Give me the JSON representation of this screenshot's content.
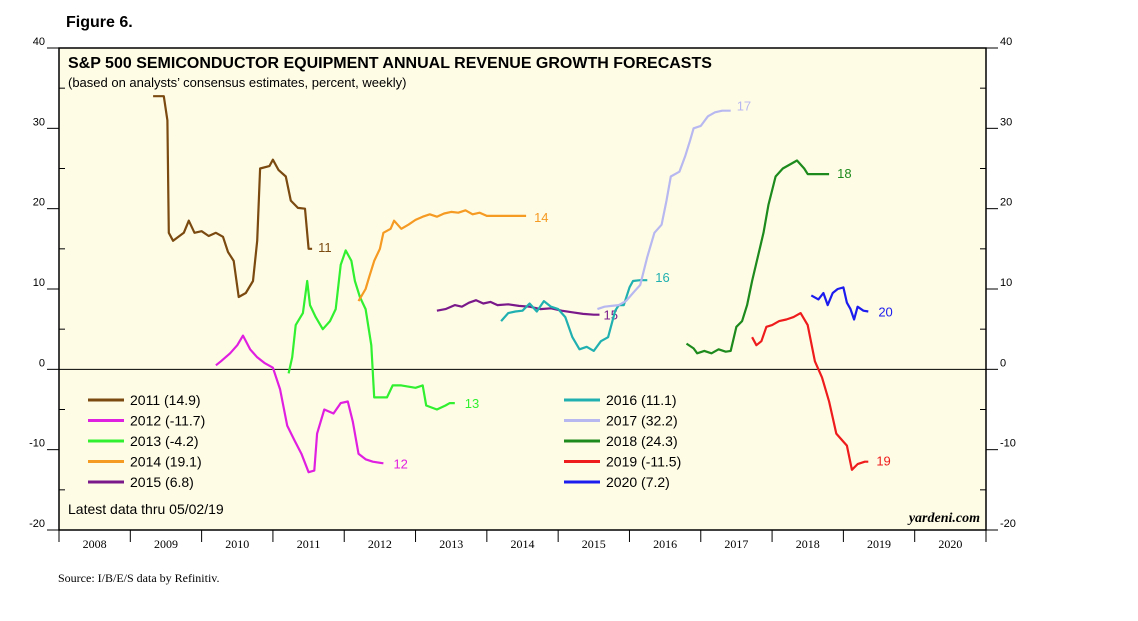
{
  "figure_label": "Figure 6.",
  "source": "Source: I/B/E/S data by Refinitiv.",
  "chart_data": {
    "type": "line",
    "title": "S&P 500 SEMICONDUCTOR EQUIPMENT ANNUAL REVENUE GROWTH FORECASTS",
    "subtitle": "(based on analysts’ consensus estimates, percent, weekly)",
    "ylim": [
      -20,
      40
    ],
    "yticks": [
      -20,
      -10,
      0,
      10,
      20,
      30,
      40
    ],
    "xlim": [
      2008,
      2021
    ],
    "xtick_labels": [
      "2008",
      "2009",
      "2010",
      "2011",
      "2012",
      "2013",
      "2014",
      "2015",
      "2016",
      "2017",
      "2018",
      "2019",
      "2020"
    ],
    "plot_background": "#fffce6",
    "latest_note": "Latest data thru 05/02/19",
    "watermark": "yardeni.com",
    "series": [
      {
        "name": "2011",
        "end_label": "11",
        "legend": "2011 (14.9)",
        "color": "#7a4a10",
        "points": [
          [
            2009.32,
            34
          ],
          [
            2009.47,
            34
          ],
          [
            2009.52,
            31
          ],
          [
            2009.54,
            17
          ],
          [
            2009.6,
            16
          ],
          [
            2009.75,
            17
          ],
          [
            2009.82,
            18.5
          ],
          [
            2009.9,
            17
          ],
          [
            2010.0,
            17.2
          ],
          [
            2010.1,
            16.6
          ],
          [
            2010.2,
            17
          ],
          [
            2010.3,
            16.5
          ],
          [
            2010.37,
            14.6
          ],
          [
            2010.45,
            13.5
          ],
          [
            2010.52,
            9
          ],
          [
            2010.62,
            9.5
          ],
          [
            2010.72,
            11
          ],
          [
            2010.78,
            16
          ],
          [
            2010.82,
            25
          ],
          [
            2010.95,
            25.3
          ],
          [
            2011.0,
            26.1
          ],
          [
            2011.08,
            24.8
          ],
          [
            2011.18,
            24
          ],
          [
            2011.25,
            21
          ],
          [
            2011.35,
            20.1
          ],
          [
            2011.45,
            20
          ],
          [
            2011.5,
            15
          ],
          [
            2011.55,
            15
          ]
        ]
      },
      {
        "name": "2012",
        "end_label": "12",
        "legend": "2012 (-11.7)",
        "color": "#e020e0",
        "points": [
          [
            2010.2,
            0.5
          ],
          [
            2010.27,
            1
          ],
          [
            2010.4,
            2
          ],
          [
            2010.5,
            3
          ],
          [
            2010.58,
            4.2
          ],
          [
            2010.68,
            2.5
          ],
          [
            2010.78,
            1.5
          ],
          [
            2010.88,
            0.8
          ],
          [
            2011.0,
            0.2
          ],
          [
            2011.1,
            -2.5
          ],
          [
            2011.2,
            -7
          ],
          [
            2011.3,
            -8.8
          ],
          [
            2011.4,
            -10.5
          ],
          [
            2011.5,
            -12.8
          ],
          [
            2011.58,
            -12.6
          ],
          [
            2011.62,
            -8
          ],
          [
            2011.72,
            -5
          ],
          [
            2011.85,
            -5.5
          ],
          [
            2011.95,
            -4.2
          ],
          [
            2012.05,
            -4
          ],
          [
            2012.12,
            -6.5
          ],
          [
            2012.2,
            -10.5
          ],
          [
            2012.3,
            -11.2
          ],
          [
            2012.4,
            -11.5
          ],
          [
            2012.55,
            -11.7
          ]
        ]
      },
      {
        "name": "2013",
        "end_label": "13",
        "legend": "2013 (-4.2)",
        "color": "#30f030",
        "points": [
          [
            2011.22,
            -0.5
          ],
          [
            2011.27,
            1.5
          ],
          [
            2011.32,
            5.5
          ],
          [
            2011.42,
            7
          ],
          [
            2011.48,
            11
          ],
          [
            2011.52,
            8
          ],
          [
            2011.6,
            6.5
          ],
          [
            2011.7,
            5
          ],
          [
            2011.8,
            6
          ],
          [
            2011.88,
            7.5
          ],
          [
            2011.95,
            13
          ],
          [
            2012.02,
            14.8
          ],
          [
            2012.1,
            13.5
          ],
          [
            2012.15,
            11
          ],
          [
            2012.22,
            9
          ],
          [
            2012.3,
            7.5
          ],
          [
            2012.38,
            3
          ],
          [
            2012.42,
            -3.5
          ],
          [
            2012.6,
            -3.5
          ],
          [
            2012.68,
            -2
          ],
          [
            2012.8,
            -2
          ],
          [
            2013.0,
            -2.3
          ],
          [
            2013.1,
            -2
          ],
          [
            2013.15,
            -4.5
          ],
          [
            2013.3,
            -5
          ],
          [
            2013.42,
            -4.5
          ],
          [
            2013.48,
            -4.2
          ],
          [
            2013.55,
            -4.2
          ]
        ]
      },
      {
        "name": "2014",
        "end_label": "14",
        "legend": "2014 (19.1)",
        "color": "#f59a22",
        "points": [
          [
            2012.2,
            8.5
          ],
          [
            2012.3,
            10
          ],
          [
            2012.35,
            11.5
          ],
          [
            2012.42,
            13.5
          ],
          [
            2012.5,
            15
          ],
          [
            2012.55,
            17
          ],
          [
            2012.65,
            17.5
          ],
          [
            2012.7,
            18.5
          ],
          [
            2012.8,
            17.5
          ],
          [
            2012.9,
            18
          ],
          [
            2013.0,
            18.6
          ],
          [
            2013.1,
            19
          ],
          [
            2013.2,
            19.3
          ],
          [
            2013.3,
            19
          ],
          [
            2013.4,
            19.4
          ],
          [
            2013.5,
            19.6
          ],
          [
            2013.6,
            19.5
          ],
          [
            2013.7,
            19.8
          ],
          [
            2013.8,
            19.3
          ],
          [
            2013.9,
            19.5
          ],
          [
            2014.0,
            19.1
          ],
          [
            2014.2,
            19.1
          ],
          [
            2014.55,
            19.1
          ]
        ]
      },
      {
        "name": "2015",
        "end_label": "15",
        "legend": "2015 (6.8)",
        "color": "#7a1a8a",
        "points": [
          [
            2013.3,
            7.3
          ],
          [
            2013.42,
            7.5
          ],
          [
            2013.55,
            8
          ],
          [
            2013.65,
            7.8
          ],
          [
            2013.75,
            8.3
          ],
          [
            2013.85,
            8.6
          ],
          [
            2013.95,
            8.2
          ],
          [
            2014.05,
            8.4
          ],
          [
            2014.15,
            8
          ],
          [
            2014.3,
            8.1
          ],
          [
            2014.45,
            7.9
          ],
          [
            2014.6,
            7.8
          ],
          [
            2014.75,
            7.5
          ],
          [
            2014.9,
            7.6
          ],
          [
            2015.05,
            7.3
          ],
          [
            2015.2,
            7.1
          ],
          [
            2015.35,
            6.9
          ],
          [
            2015.5,
            6.8
          ],
          [
            2015.58,
            6.8
          ]
        ]
      },
      {
        "name": "2016",
        "end_label": "16",
        "legend": "2016 (11.1)",
        "color": "#20b0b0",
        "points": [
          [
            2014.2,
            6
          ],
          [
            2014.3,
            7
          ],
          [
            2014.4,
            7.2
          ],
          [
            2014.5,
            7.3
          ],
          [
            2014.6,
            8.2
          ],
          [
            2014.7,
            7.2
          ],
          [
            2014.8,
            8.5
          ],
          [
            2014.9,
            7.8
          ],
          [
            2015.0,
            7.5
          ],
          [
            2015.1,
            6.5
          ],
          [
            2015.2,
            4
          ],
          [
            2015.3,
            2.5
          ],
          [
            2015.4,
            2.8
          ],
          [
            2015.5,
            2.3
          ],
          [
            2015.6,
            3.5
          ],
          [
            2015.7,
            4
          ],
          [
            2015.8,
            7.3
          ],
          [
            2015.85,
            8
          ],
          [
            2015.92,
            8
          ],
          [
            2016.0,
            10.2
          ],
          [
            2016.05,
            11
          ],
          [
            2016.15,
            11.1
          ],
          [
            2016.25,
            11.1
          ]
        ]
      },
      {
        "name": "2017",
        "end_label": "17",
        "legend": "2017 (32.2)",
        "color": "#b8b8f0",
        "points": [
          [
            2015.55,
            7.5
          ],
          [
            2015.65,
            7.8
          ],
          [
            2015.75,
            7.9
          ],
          [
            2015.85,
            8
          ],
          [
            2015.95,
            8.5
          ],
          [
            2016.05,
            9.5
          ],
          [
            2016.15,
            10.5
          ],
          [
            2016.25,
            14
          ],
          [
            2016.35,
            17
          ],
          [
            2016.45,
            18
          ],
          [
            2016.52,
            21
          ],
          [
            2016.58,
            24
          ],
          [
            2016.7,
            24.6
          ],
          [
            2016.78,
            26.5
          ],
          [
            2016.85,
            28.5
          ],
          [
            2016.9,
            30
          ],
          [
            2017.0,
            30.3
          ],
          [
            2017.1,
            31.5
          ],
          [
            2017.2,
            32
          ],
          [
            2017.3,
            32.2
          ],
          [
            2017.42,
            32.2
          ]
        ]
      },
      {
        "name": "2018",
        "end_label": "18",
        "legend": "2018 (24.3)",
        "color": "#1c8a1c",
        "points": [
          [
            2016.8,
            3.2
          ],
          [
            2016.9,
            2.6
          ],
          [
            2016.95,
            2
          ],
          [
            2017.05,
            2.3
          ],
          [
            2017.15,
            2
          ],
          [
            2017.25,
            2.5
          ],
          [
            2017.35,
            2.2
          ],
          [
            2017.42,
            2.3
          ],
          [
            2017.5,
            5.3
          ],
          [
            2017.58,
            6
          ],
          [
            2017.65,
            8
          ],
          [
            2017.72,
            11
          ],
          [
            2017.8,
            14
          ],
          [
            2017.88,
            17
          ],
          [
            2017.95,
            20.5
          ],
          [
            2018.05,
            24
          ],
          [
            2018.15,
            25
          ],
          [
            2018.25,
            25.5
          ],
          [
            2018.35,
            26
          ],
          [
            2018.45,
            25
          ],
          [
            2018.5,
            24.3
          ],
          [
            2018.6,
            24.3
          ],
          [
            2018.8,
            24.3
          ]
        ]
      },
      {
        "name": "2019",
        "end_label": "19",
        "legend": "2019 (-11.5)",
        "color": "#ee1c1c",
        "points": [
          [
            2017.72,
            4
          ],
          [
            2017.78,
            3
          ],
          [
            2017.85,
            3.5
          ],
          [
            2017.92,
            5.3
          ],
          [
            2018.0,
            5.5
          ],
          [
            2018.1,
            6
          ],
          [
            2018.2,
            6.2
          ],
          [
            2018.3,
            6.5
          ],
          [
            2018.4,
            7
          ],
          [
            2018.5,
            5.5
          ],
          [
            2018.6,
            1
          ],
          [
            2018.7,
            -1
          ],
          [
            2018.8,
            -4
          ],
          [
            2018.85,
            -6
          ],
          [
            2018.9,
            -8
          ],
          [
            2018.95,
            -8.5
          ],
          [
            2019.05,
            -9.5
          ],
          [
            2019.12,
            -12.5
          ],
          [
            2019.2,
            -11.8
          ],
          [
            2019.3,
            -11.5
          ],
          [
            2019.35,
            -11.5
          ]
        ]
      },
      {
        "name": "2020",
        "end_label": "20",
        "legend": "2020 (7.2)",
        "color": "#1c1cee",
        "points": [
          [
            2018.55,
            9.2
          ],
          [
            2018.65,
            8.7
          ],
          [
            2018.72,
            9.5
          ],
          [
            2018.78,
            8
          ],
          [
            2018.85,
            9.5
          ],
          [
            2018.92,
            10
          ],
          [
            2019.0,
            10.2
          ],
          [
            2019.05,
            8.3
          ],
          [
            2019.1,
            7.5
          ],
          [
            2019.15,
            6.2
          ],
          [
            2019.2,
            7.8
          ],
          [
            2019.28,
            7.3
          ],
          [
            2019.35,
            7.2
          ]
        ]
      }
    ]
  }
}
